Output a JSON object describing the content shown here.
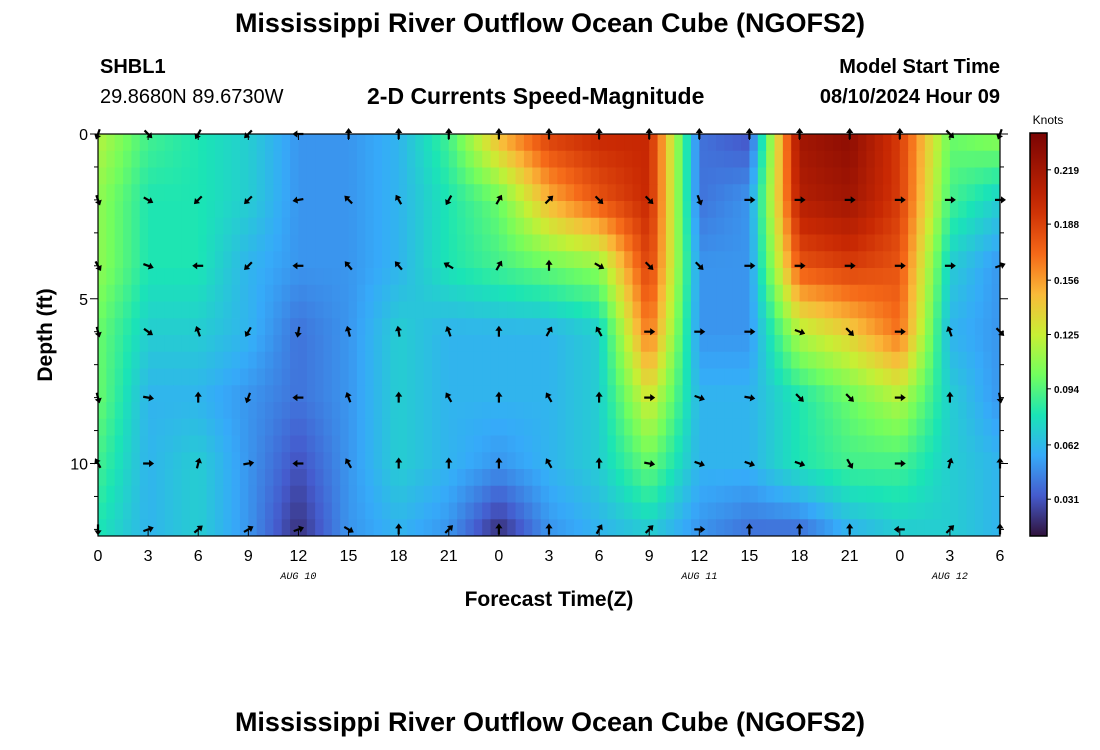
{
  "title": "Mississippi River Outflow Ocean Cube (NGOFS2)",
  "station": {
    "name": "SHBL1",
    "coords": "29.8680N  89.6730W"
  },
  "subtitle": "2-D Currents Speed-Magnitude",
  "model_start": {
    "label": "Model Start Time",
    "value": "08/10/2024 Hour 09"
  },
  "bottom_title": "Mississippi River Outflow Ocean Cube (NGOFS2)",
  "chart_data": {
    "type": "heatmap",
    "title": "2-D Currents Speed-Magnitude",
    "xlabel": "Forecast Time(Z)",
    "ylabel": "Depth (ft)",
    "x_ticks": [
      "0",
      "3",
      "6",
      "9",
      "12",
      "15",
      "18",
      "21",
      "0",
      "3",
      "6",
      "9",
      "12",
      "15",
      "18",
      "21",
      "0",
      "3",
      "6"
    ],
    "date_labels": [
      {
        "label": "AUG 10",
        "at_tick": 4
      },
      {
        "label": "AUG 11",
        "at_tick": 12
      },
      {
        "label": "AUG 12",
        "at_tick": 17
      }
    ],
    "y_ticks": [
      "0",
      "5",
      "10"
    ],
    "ylim": [
      0,
      12.2
    ],
    "y_inverted": true,
    "colorbar": {
      "label": "Knots",
      "ticks": [
        "0.219",
        "0.188",
        "0.156",
        "0.125",
        "0.094",
        "0.062",
        "0.031"
      ],
      "range": [
        0.01,
        0.24
      ],
      "colormap": "turbo"
    },
    "depth_levels_ft": [
      0,
      2,
      4,
      6,
      8,
      10,
      12
    ],
    "time_columns": [
      0,
      3,
      6,
      9,
      12,
      15,
      18,
      21,
      24,
      27,
      30,
      33,
      36,
      39,
      42,
      45,
      48,
      51,
      54
    ],
    "speed_knots": [
      [
        0.12,
        0.09,
        0.08,
        0.07,
        0.05,
        0.05,
        0.06,
        0.09,
        0.15,
        0.19,
        0.2,
        0.2,
        0.04,
        0.03,
        0.22,
        0.23,
        0.19,
        0.1,
        0.11
      ],
      [
        0.11,
        0.08,
        0.08,
        0.07,
        0.05,
        0.05,
        0.06,
        0.08,
        0.1,
        0.15,
        0.18,
        0.2,
        0.04,
        0.05,
        0.21,
        0.22,
        0.19,
        0.09,
        0.07
      ],
      [
        0.11,
        0.08,
        0.08,
        0.06,
        0.05,
        0.05,
        0.06,
        0.08,
        0.09,
        0.1,
        0.11,
        0.19,
        0.05,
        0.05,
        0.18,
        0.19,
        0.18,
        0.07,
        0.05
      ],
      [
        0.1,
        0.07,
        0.07,
        0.06,
        0.04,
        0.05,
        0.07,
        0.06,
        0.06,
        0.06,
        0.07,
        0.17,
        0.05,
        0.05,
        0.12,
        0.14,
        0.17,
        0.06,
        0.05
      ],
      [
        0.1,
        0.06,
        0.06,
        0.05,
        0.04,
        0.05,
        0.07,
        0.06,
        0.06,
        0.06,
        0.07,
        0.13,
        0.06,
        0.06,
        0.08,
        0.1,
        0.12,
        0.07,
        0.05
      ],
      [
        0.09,
        0.06,
        0.07,
        0.05,
        0.03,
        0.05,
        0.07,
        0.06,
        0.05,
        0.06,
        0.07,
        0.1,
        0.06,
        0.06,
        0.08,
        0.09,
        0.09,
        0.07,
        0.06
      ],
      [
        0.08,
        0.06,
        0.07,
        0.05,
        0.02,
        0.05,
        0.06,
        0.05,
        0.02,
        0.05,
        0.06,
        0.07,
        0.05,
        0.04,
        0.04,
        0.06,
        0.07,
        0.07,
        0.06
      ]
    ],
    "arrow_depths_ft": [
      0,
      2,
      4,
      6,
      8,
      10,
      12
    ],
    "arrow_directions_deg": [
      [
        200,
        135,
        210,
        225,
        270,
        0,
        0,
        0,
        0,
        0,
        0,
        0,
        0,
        0,
        0,
        0,
        0,
        135,
        200
      ],
      [
        160,
        120,
        225,
        225,
        260,
        315,
        330,
        210,
        30,
        45,
        135,
        135,
        160,
        90,
        90,
        90,
        90,
        90,
        90
      ],
      [
        150,
        110,
        270,
        225,
        270,
        320,
        320,
        300,
        30,
        0,
        120,
        135,
        135,
        90,
        90,
        90,
        90,
        90,
        70
      ],
      [
        165,
        125,
        340,
        210,
        190,
        345,
        350,
        340,
        0,
        30,
        330,
        90,
        90,
        90,
        110,
        135,
        90,
        340,
        135
      ],
      [
        165,
        100,
        0,
        200,
        270,
        340,
        0,
        330,
        0,
        330,
        0,
        90,
        110,
        100,
        135,
        135,
        90,
        0,
        170
      ],
      [
        330,
        90,
        15,
        80,
        270,
        330,
        0,
        0,
        0,
        330,
        0,
        100,
        110,
        110,
        110,
        150,
        90,
        15,
        0
      ],
      [
        180,
        70,
        50,
        60,
        70,
        120,
        0,
        45,
        0,
        0,
        30,
        45,
        90,
        0,
        0,
        0,
        270,
        45,
        0
      ]
    ]
  }
}
